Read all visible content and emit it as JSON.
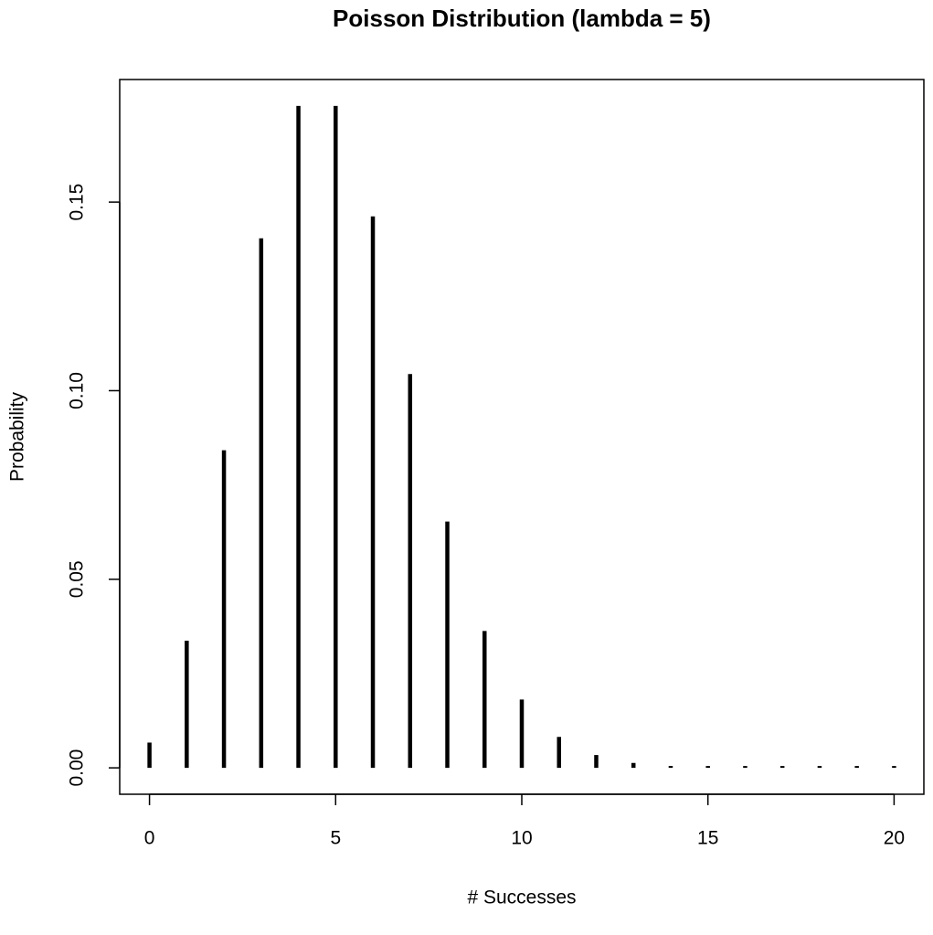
{
  "chart_data": {
    "type": "stem",
    "title": "Poisson Distribution (lambda = 5)",
    "x_label": "# Successes",
    "y_label": "Probability",
    "x": [
      0,
      1,
      2,
      3,
      4,
      5,
      6,
      7,
      8,
      9,
      10,
      11,
      12,
      13,
      14,
      15,
      16,
      17,
      18,
      19,
      20
    ],
    "values": [
      0.0067,
      0.0337,
      0.0842,
      0.1404,
      0.1755,
      0.1755,
      0.1462,
      0.1044,
      0.0653,
      0.0363,
      0.0181,
      0.0082,
      0.0034,
      0.0013,
      0.0005,
      0.0002,
      0.0001,
      0,
      0,
      0,
      0
    ],
    "color": "#000000",
    "xlim": [
      -0.8,
      20.8
    ],
    "ylim": [
      -0.007,
      0.1825
    ],
    "xticks": [
      0,
      5,
      10,
      15,
      20
    ],
    "yticks": [
      {
        "value": 0,
        "label": "0.00"
      },
      {
        "value": 0.05,
        "label": "0.05"
      },
      {
        "value": 0.1,
        "label": "0.10"
      },
      {
        "value": 0.15,
        "label": "0.15"
      }
    ]
  }
}
